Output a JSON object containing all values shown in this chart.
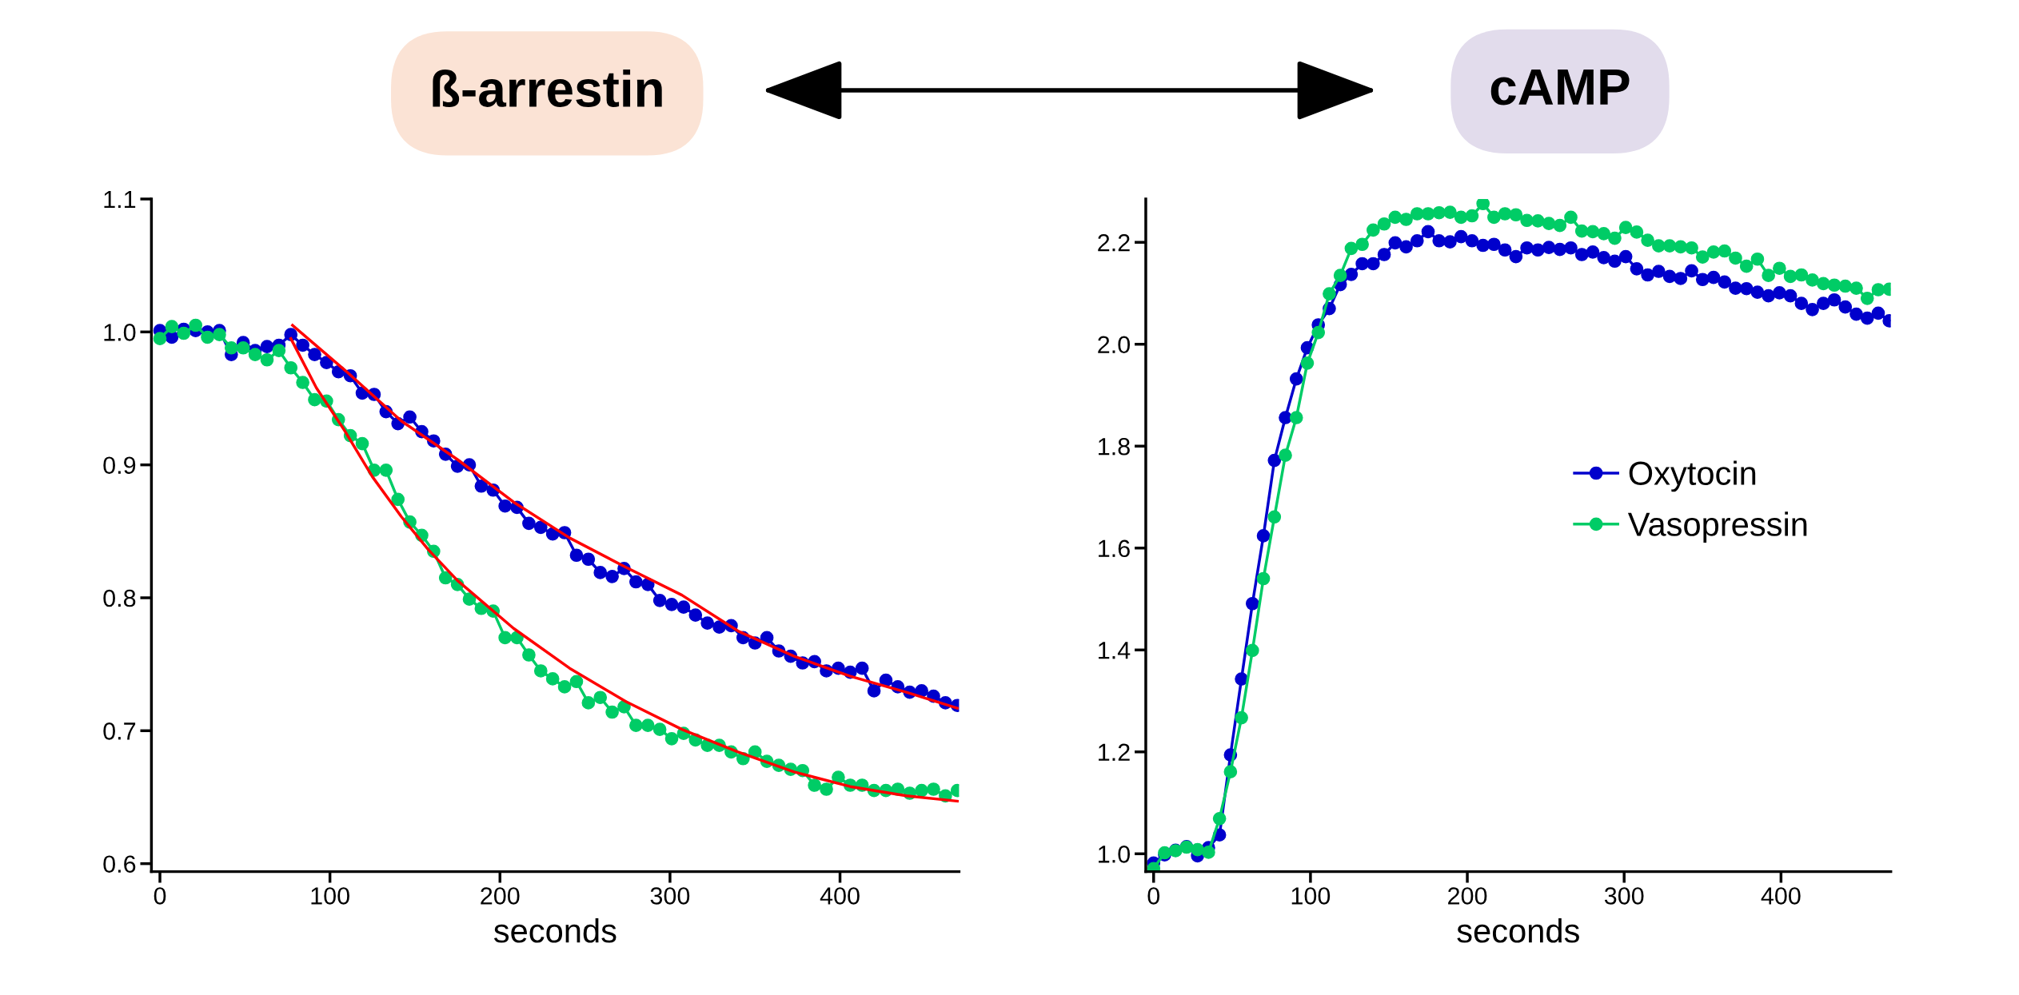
{
  "chart_data": [
    {
      "type": "line",
      "title": "ß-arrestin",
      "xlabel": "seconds",
      "x": [
        0,
        7,
        14,
        21,
        28,
        35,
        42,
        49,
        56,
        63,
        70,
        77,
        84,
        91,
        98,
        105,
        112,
        119,
        126,
        133,
        140,
        147,
        154,
        161,
        168,
        175,
        182,
        189,
        196,
        203,
        210,
        217,
        224,
        231,
        238,
        245,
        252,
        259,
        266,
        273,
        280,
        287,
        294,
        301,
        308,
        315,
        322,
        329,
        336,
        343,
        350,
        357,
        364,
        371,
        378,
        385,
        392,
        399,
        406,
        413,
        420,
        427,
        434,
        441,
        448,
        455,
        462,
        469
      ],
      "xlim": [
        -5,
        470
      ],
      "xticks": [
        0,
        100,
        200,
        300,
        400
      ],
      "ylim": [
        0.594,
        1.1
      ],
      "yticks": [
        {
          "value": 0.6,
          "label": "0.6"
        },
        {
          "value": 0.7,
          "label": "0.7"
        },
        {
          "value": 0.8,
          "label": "0.8"
        },
        {
          "value": 0.9,
          "label": "0.9"
        },
        {
          "value": 1.0,
          "label": "1.0"
        },
        {
          "value": 1.1,
          "label": "1.1"
        }
      ],
      "grid": false,
      "legend": false,
      "marker": "circle",
      "line_style": "solid",
      "series": [
        {
          "color": "#0000cc",
          "values": [
            1.001,
            0.996,
            1.002,
            1.001,
            1.0,
            1.001,
            0.983,
            0.992,
            0.986,
            0.989,
            0.99,
            0.998,
            0.99,
            0.983,
            0.977,
            0.97,
            0.967,
            0.954,
            0.953,
            0.94,
            0.931,
            0.936,
            0.925,
            0.918,
            0.908,
            0.899,
            0.9,
            0.884,
            0.881,
            0.869,
            0.868,
            0.856,
            0.853,
            0.848,
            0.849,
            0.832,
            0.829,
            0.819,
            0.816,
            0.822,
            0.812,
            0.81,
            0.798,
            0.795,
            0.793,
            0.787,
            0.781,
            0.778,
            0.779,
            0.77,
            0.766,
            0.77,
            0.76,
            0.756,
            0.751,
            0.752,
            0.745,
            0.747,
            0.744,
            0.747,
            0.73,
            0.738,
            0.733,
            0.729,
            0.73,
            0.726,
            0.721,
            0.719
          ]
        },
        {
          "color": "#00cc66",
          "values": [
            0.995,
            1.004,
            0.999,
            1.005,
            0.996,
            0.998,
            0.988,
            0.988,
            0.983,
            0.979,
            0.986,
            0.973,
            0.962,
            0.949,
            0.948,
            0.934,
            0.922,
            0.916,
            0.896,
            0.896,
            0.874,
            0.857,
            0.847,
            0.835,
            0.815,
            0.81,
            0.799,
            0.792,
            0.79,
            0.77,
            0.77,
            0.757,
            0.745,
            0.739,
            0.733,
            0.737,
            0.721,
            0.725,
            0.714,
            0.718,
            0.704,
            0.704,
            0.701,
            0.694,
            0.698,
            0.693,
            0.689,
            0.689,
            0.684,
            0.679,
            0.684,
            0.677,
            0.674,
            0.671,
            0.67,
            0.659,
            0.656,
            0.665,
            0.659,
            0.659,
            0.655,
            0.655,
            0.656,
            0.653,
            0.655,
            0.656,
            0.651,
            0.655
          ]
        },
        {
          "color": "#ff0000",
          "marker": "none",
          "x": [
            78,
            109,
            142,
            175,
            208,
            241,
            274,
            307,
            340,
            373,
            406,
            439,
            469
          ],
          "values": [
            1.005,
            0.971,
            0.933,
            0.904,
            0.872,
            0.845,
            0.823,
            0.802,
            0.775,
            0.756,
            0.741,
            0.729,
            0.717
          ]
        },
        {
          "color": "#ff0000",
          "marker": "none",
          "x": [
            77,
            92,
            109,
            125,
            142,
            158,
            175,
            208,
            241,
            274,
            307,
            340,
            373,
            406,
            439,
            469
          ],
          "values": [
            0.995,
            0.958,
            0.925,
            0.891,
            0.861,
            0.836,
            0.813,
            0.777,
            0.747,
            0.722,
            0.701,
            0.684,
            0.669,
            0.658,
            0.651,
            0.647
          ]
        }
      ]
    },
    {
      "type": "line",
      "title": "cAMP",
      "xlabel": "seconds",
      "x": [
        0,
        7,
        14,
        21,
        28,
        35,
        42,
        49,
        56,
        63,
        70,
        77,
        84,
        91,
        98,
        105,
        112,
        119,
        126,
        133,
        140,
        147,
        154,
        161,
        168,
        175,
        182,
        189,
        196,
        203,
        210,
        217,
        224,
        231,
        238,
        245,
        252,
        259,
        266,
        273,
        280,
        287,
        294,
        301,
        308,
        315,
        322,
        329,
        336,
        343,
        350,
        357,
        364,
        371,
        378,
        385,
        392,
        399,
        406,
        413,
        420,
        427,
        434,
        441,
        448,
        455,
        462,
        469
      ],
      "xlim": [
        -5,
        470
      ],
      "xticks": [
        0,
        100,
        200,
        300,
        400
      ],
      "ylim": [
        0.965,
        2.285
      ],
      "yticks": [
        {
          "value": 1.0,
          "label": "1.0"
        },
        {
          "value": 1.2,
          "label": "1.2"
        },
        {
          "value": 1.4,
          "label": "1.4"
        },
        {
          "value": 1.6,
          "label": "1.6"
        },
        {
          "value": 1.8,
          "label": "1.8"
        },
        {
          "value": 2.0,
          "label": "2.0"
        },
        {
          "value": 2.2,
          "label": "2.2"
        }
      ],
      "grid": false,
      "legend": "right",
      "marker": "circle",
      "line_style": "solid",
      "series": [
        {
          "name": "Oxytocin",
          "color": "#0000cc",
          "values": [
            0.982,
            0.998,
            1.007,
            1.014,
            0.996,
            1.012,
            1.037,
            1.194,
            1.343,
            1.491,
            1.624,
            1.772,
            1.856,
            1.932,
            1.993,
            2.038,
            2.07,
            2.117,
            2.137,
            2.158,
            2.158,
            2.176,
            2.199,
            2.191,
            2.203,
            2.221,
            2.203,
            2.201,
            2.211,
            2.203,
            2.194,
            2.196,
            2.185,
            2.172,
            2.189,
            2.185,
            2.19,
            2.186,
            2.189,
            2.176,
            2.181,
            2.17,
            2.163,
            2.172,
            2.148,
            2.136,
            2.143,
            2.133,
            2.129,
            2.144,
            2.127,
            2.131,
            2.122,
            2.11,
            2.109,
            2.102,
            2.095,
            2.101,
            2.095,
            2.08,
            2.068,
            2.08,
            2.087,
            2.073,
            2.059,
            2.051,
            2.061,
            2.046
          ]
        },
        {
          "name": "Vasopressin",
          "color": "#00cc66",
          "values": [
            0.971,
            1.002,
            1.006,
            1.013,
            1.008,
            1.003,
            1.069,
            1.161,
            1.267,
            1.399,
            1.54,
            1.661,
            1.782,
            1.856,
            1.963,
            2.023,
            2.099,
            2.135,
            2.188,
            2.196,
            2.224,
            2.236,
            2.249,
            2.245,
            2.256,
            2.256,
            2.258,
            2.259,
            2.249,
            2.252,
            2.276,
            2.249,
            2.256,
            2.254,
            2.243,
            2.242,
            2.237,
            2.233,
            2.249,
            2.222,
            2.221,
            2.217,
            2.208,
            2.229,
            2.22,
            2.204,
            2.193,
            2.193,
            2.191,
            2.189,
            2.171,
            2.181,
            2.183,
            2.169,
            2.153,
            2.167,
            2.135,
            2.149,
            2.133,
            2.136,
            2.126,
            2.119,
            2.116,
            2.114,
            2.11,
            2.09,
            2.107,
            2.108
          ]
        }
      ]
    }
  ]
}
